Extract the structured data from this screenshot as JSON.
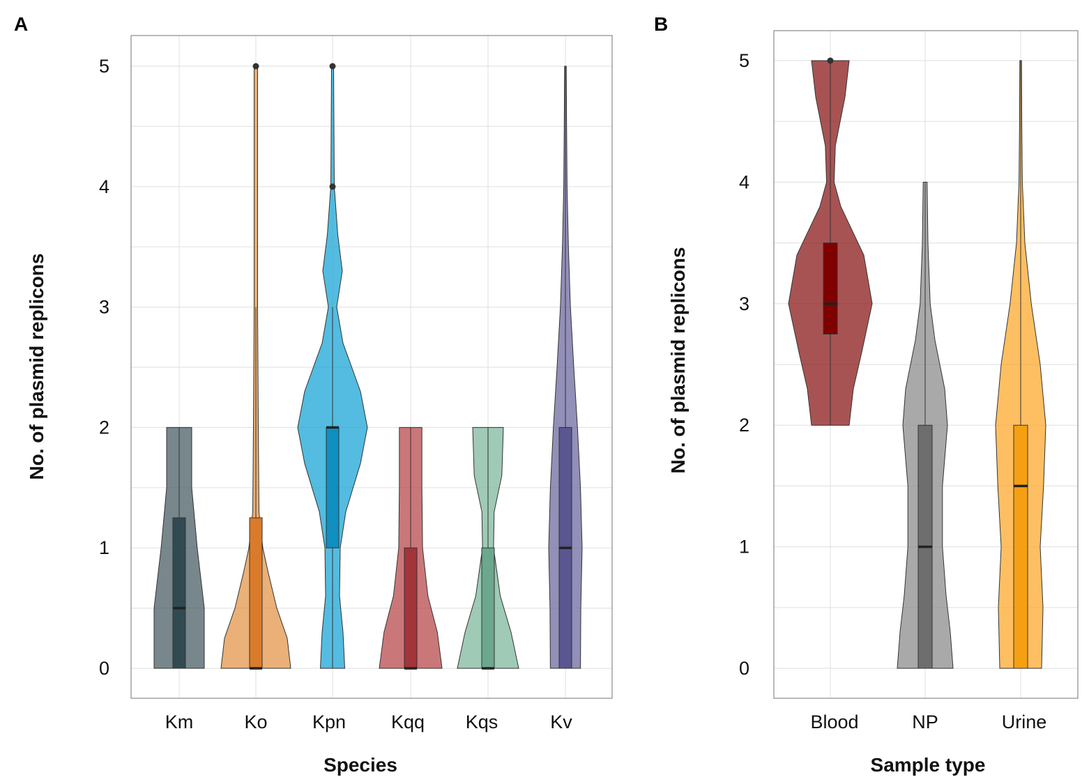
{
  "chart_data": [
    {
      "panel": "A",
      "type": "violin",
      "xlabel": "Species",
      "ylabel": "No. of plasmid replicons",
      "ylim": [
        -0.25,
        5.25
      ],
      "yticks": [
        "0",
        "1",
        "2",
        "3",
        "4",
        "5"
      ],
      "grid": true,
      "categories": [
        "Km",
        "Ko",
        "Kpn",
        "Kqq",
        "Kqs",
        "Kv"
      ],
      "groups": [
        {
          "name": "Km",
          "fill": "#4a5f66",
          "box_fill": "#314a52",
          "range": [
            0,
            2
          ],
          "median": 0.5,
          "q1": 0,
          "q3": 1.25,
          "whisker": [
            0,
            2
          ],
          "outliers": [],
          "density": [
            [
              0,
              1.0
            ],
            [
              0.5,
              1.0
            ],
            [
              1.0,
              0.72
            ],
            [
              1.5,
              0.5
            ],
            [
              2,
              0.5
            ]
          ]
        },
        {
          "name": "Ko",
          "fill": "#e3954a",
          "box_fill": "#d97b2a",
          "range": [
            0,
            5
          ],
          "median": 0,
          "q1": 0,
          "q3": 1.25,
          "whisker": [
            0,
            3
          ],
          "outliers": [
            5
          ],
          "density": [
            [
              0,
              1.0
            ],
            [
              0.25,
              0.9
            ],
            [
              0.5,
              0.6
            ],
            [
              0.8,
              0.35
            ],
            [
              1.0,
              0.2
            ],
            [
              1.3,
              0.09
            ],
            [
              2,
              0.07
            ],
            [
              3,
              0.05
            ],
            [
              4,
              0.05
            ],
            [
              5,
              0.05
            ]
          ]
        },
        {
          "name": "Kpn",
          "fill": "#1aa6d6",
          "box_fill": "#0f8fc0",
          "range": [
            0,
            5
          ],
          "median": 2,
          "q1": 1,
          "q3": 2,
          "whisker": [
            0,
            3
          ],
          "outliers": [
            4,
            5
          ],
          "density": [
            [
              0,
              0.35
            ],
            [
              0.3,
              0.3
            ],
            [
              0.6,
              0.2
            ],
            [
              1.0,
              0.22
            ],
            [
              1.3,
              0.38
            ],
            [
              1.7,
              0.8
            ],
            [
              2,
              1.0
            ],
            [
              2.3,
              0.8
            ],
            [
              2.7,
              0.3
            ],
            [
              3,
              0.12
            ],
            [
              3.3,
              0.28
            ],
            [
              3.6,
              0.15
            ],
            [
              4,
              0.05
            ],
            [
              4.5,
              0.04
            ],
            [
              5,
              0.03
            ]
          ]
        },
        {
          "name": "Kqq",
          "fill": "#b84a4e",
          "box_fill": "#a2343a",
          "range": [
            0,
            2
          ],
          "median": 0,
          "q1": 0,
          "q3": 1,
          "whisker": [
            0,
            2
          ],
          "outliers": [],
          "density": [
            [
              0,
              1.0
            ],
            [
              0.3,
              0.85
            ],
            [
              0.6,
              0.55
            ],
            [
              1.0,
              0.38
            ],
            [
              1.5,
              0.36
            ],
            [
              2,
              0.36
            ]
          ]
        },
        {
          "name": "Kqs",
          "fill": "#7fb89e",
          "box_fill": "#6ba88d",
          "range": [
            0,
            2
          ],
          "median": 0,
          "q1": 0,
          "q3": 1,
          "whisker": [
            0,
            2
          ],
          "outliers": [],
          "density": [
            [
              0,
              1.0
            ],
            [
              0.3,
              0.75
            ],
            [
              0.6,
              0.4
            ],
            [
              1.0,
              0.18
            ],
            [
              1.3,
              0.2
            ],
            [
              1.6,
              0.45
            ],
            [
              2,
              0.5
            ]
          ]
        },
        {
          "name": "Kv",
          "fill": "#6e6aa0",
          "box_fill": "#5a5690",
          "range": [
            0,
            5
          ],
          "median": 1,
          "q1": 0,
          "q3": 2,
          "whisker": [
            0,
            5
          ],
          "outliers": [],
          "density": [
            [
              0,
              0.9
            ],
            [
              0.5,
              0.92
            ],
            [
              1.0,
              1.0
            ],
            [
              1.5,
              0.9
            ],
            [
              2,
              0.72
            ],
            [
              2.5,
              0.5
            ],
            [
              3,
              0.3
            ],
            [
              3.5,
              0.18
            ],
            [
              4,
              0.1
            ],
            [
              4.5,
              0.07
            ],
            [
              5,
              0.05
            ]
          ]
        }
      ]
    },
    {
      "panel": "B",
      "type": "violin",
      "xlabel": "Sample type",
      "ylabel": "No. of plasmid replicons",
      "ylim": [
        -0.25,
        5.25
      ],
      "yticks": [
        "0",
        "1",
        "2",
        "3",
        "4",
        "5"
      ],
      "grid": true,
      "categories": [
        "Blood",
        "NP",
        "Urine"
      ],
      "groups": [
        {
          "name": "Blood",
          "fill": "#8b1a1a",
          "box_fill": "#800000",
          "range": [
            2,
            5
          ],
          "median": 3,
          "q1": 2.75,
          "q3": 3.5,
          "whisker": [
            2,
            5
          ],
          "outliers": [
            5
          ],
          "density": [
            [
              2,
              0.45
            ],
            [
              2.3,
              0.55
            ],
            [
              2.6,
              0.75
            ],
            [
              3,
              1.0
            ],
            [
              3.4,
              0.8
            ],
            [
              3.8,
              0.25
            ],
            [
              4.0,
              0.09
            ],
            [
              4.3,
              0.12
            ],
            [
              4.7,
              0.35
            ],
            [
              5,
              0.45
            ]
          ]
        },
        {
          "name": "NP",
          "fill": "#8c8c8c",
          "box_fill": "#6e6e6e",
          "range": [
            0,
            4
          ],
          "median": 1,
          "q1": 0,
          "q3": 2,
          "whisker": [
            0,
            4
          ],
          "outliers": [],
          "density": [
            [
              0,
              1.0
            ],
            [
              0.3,
              0.9
            ],
            [
              0.6,
              0.75
            ],
            [
              1,
              0.62
            ],
            [
              1.5,
              0.62
            ],
            [
              2,
              0.8
            ],
            [
              2.3,
              0.7
            ],
            [
              2.7,
              0.35
            ],
            [
              3,
              0.18
            ],
            [
              3.5,
              0.1
            ],
            [
              4,
              0.07
            ]
          ]
        },
        {
          "name": "Urine",
          "fill": "#fca92e",
          "box_fill": "#f5a012",
          "range": [
            0,
            5
          ],
          "median": 1.5,
          "q1": 0,
          "q3": 2,
          "whisker": [
            0,
            5
          ],
          "outliers": [],
          "density": [
            [
              0,
              0.75
            ],
            [
              0.5,
              0.8
            ],
            [
              1,
              0.7
            ],
            [
              1.5,
              0.82
            ],
            [
              2,
              0.9
            ],
            [
              2.5,
              0.7
            ],
            [
              3,
              0.38
            ],
            [
              3.5,
              0.15
            ],
            [
              4,
              0.06
            ],
            [
              4.5,
              0.04
            ],
            [
              5,
              0.03
            ]
          ]
        }
      ]
    }
  ]
}
